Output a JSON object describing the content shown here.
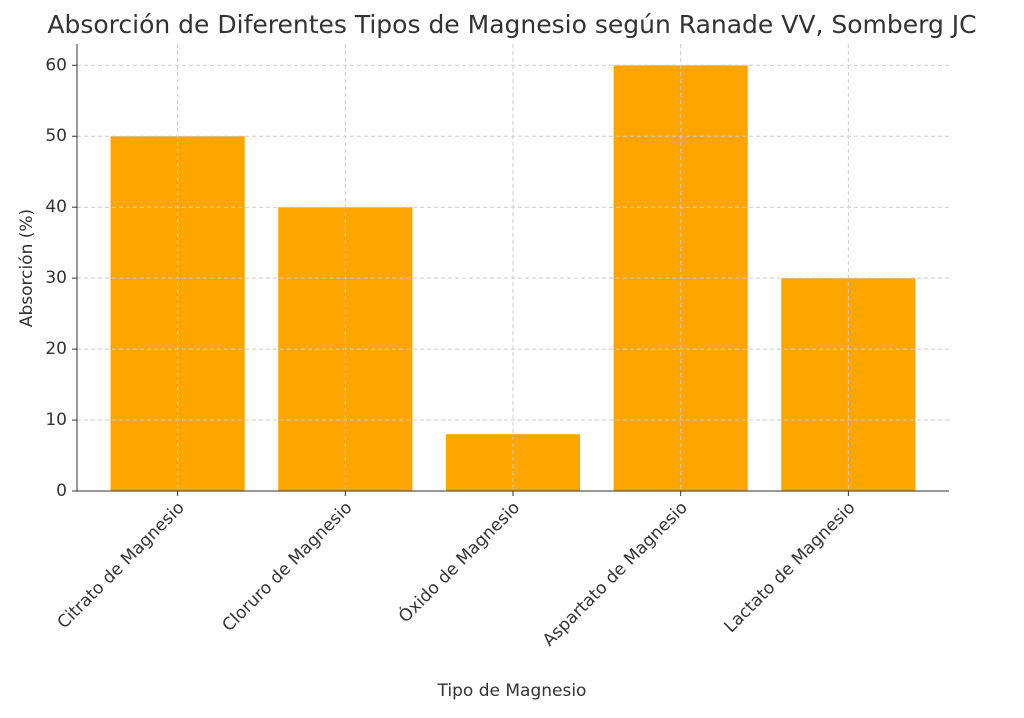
{
  "chart_data": {
    "type": "bar",
    "title": "Absorción de Diferentes Tipos de Magnesio según Ranade VV, Somberg JC",
    "x_label": "Tipo de Magnesio",
    "y_label": "Absorción (%)",
    "categories": [
      "Citrato de Magnesio",
      "Cloruro de Magnesio",
      "Óxido de Magnesio",
      "Aspartato de Magnesio",
      "Lactato de Magnesio"
    ],
    "values": [
      50,
      40,
      8,
      60,
      30
    ],
    "color": "#ffa500",
    "ylim": [
      0,
      63
    ],
    "yticks": [
      0,
      10,
      20,
      30,
      40,
      50,
      60
    ],
    "grid": true
  }
}
